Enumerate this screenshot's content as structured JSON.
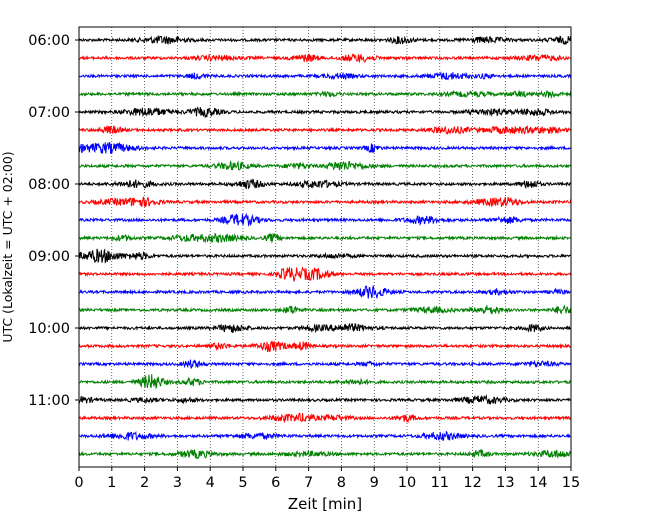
{
  "chart_data": {
    "type": "line",
    "subtype": "helicorder",
    "xlabel": "Zeit  [min]",
    "ylabel": "UTC (Lokalzeit = UTC + 02:00)",
    "xlim": [
      0,
      15
    ],
    "x_ticks": [
      "0",
      "1",
      "2",
      "3",
      "4",
      "5",
      "6",
      "7",
      "8",
      "9",
      "10",
      "11",
      "12",
      "13",
      "14",
      "15"
    ],
    "y_ticks": [
      "06:00",
      "07:00",
      "08:00",
      "09:00",
      "10:00",
      "11:00"
    ],
    "trace_start_times_utc": [
      "06:00",
      "06:15",
      "06:30",
      "06:45",
      "07:00",
      "07:15",
      "07:30",
      "07:45",
      "08:00",
      "08:15",
      "08:30",
      "08:45",
      "09:00",
      "09:15",
      "09:30",
      "09:45",
      "10:00",
      "10:15",
      "10:30",
      "10:45",
      "11:00",
      "11:15",
      "11:30",
      "11:45"
    ],
    "trace_color_cycle": [
      "#000000",
      "#ff0000",
      "#0000ff",
      "#008000"
    ],
    "grid": "vertical dotted at each minute"
  }
}
